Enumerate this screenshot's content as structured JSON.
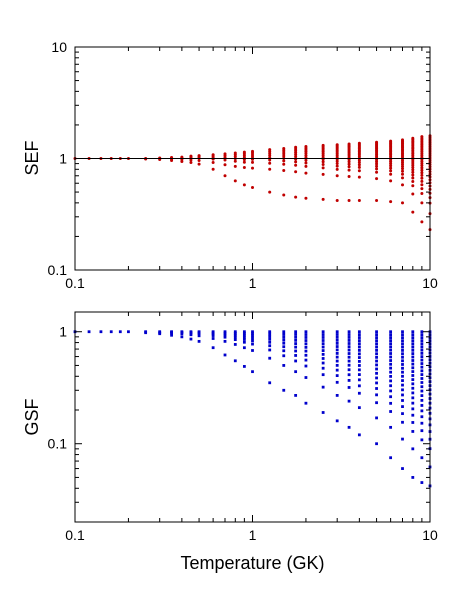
{
  "chart_data": [
    {
      "type": "scatter",
      "xscale": "log",
      "yscale": "log",
      "xlim": [
        0.1,
        10
      ],
      "ylim": [
        0.1,
        10
      ],
      "xticks": [
        "0.1",
        "1",
        "10"
      ],
      "yticks": [
        "0.1",
        "1",
        "10"
      ],
      "ylabel": "SEF",
      "xlabel": "",
      "reference_line_y": 1,
      "color": "#c00000",
      "series": [
        {
          "temperatures": [
            0.1,
            0.12,
            0.14,
            0.16,
            0.18,
            0.2,
            0.25,
            0.3,
            0.35,
            0.4,
            0.45,
            0.5,
            0.6,
            0.7,
            0.8,
            0.9,
            1.0,
            1.25,
            1.5,
            1.75,
            2.0,
            2.5,
            3.0,
            3.5,
            4.0,
            5.0,
            6.0,
            7.0,
            8.0,
            9.0,
            10.0
          ],
          "max": [
            1.0,
            1.0,
            1.0,
            1.0,
            1.0,
            1.0,
            1.0,
            1.01,
            1.02,
            1.03,
            1.05,
            1.06,
            1.08,
            1.1,
            1.12,
            1.14,
            1.16,
            1.2,
            1.23,
            1.26,
            1.28,
            1.31,
            1.33,
            1.35,
            1.37,
            1.4,
            1.43,
            1.47,
            1.52,
            1.57,
            1.6
          ],
          "min": [
            1.0,
            1.0,
            1.0,
            1.0,
            1.0,
            1.0,
            0.99,
            0.98,
            0.96,
            0.94,
            0.92,
            0.89,
            0.8,
            0.7,
            0.63,
            0.58,
            0.55,
            0.5,
            0.47,
            0.45,
            0.44,
            0.43,
            0.42,
            0.42,
            0.42,
            0.42,
            0.41,
            0.4,
            0.33,
            0.27,
            0.23
          ],
          "min_secondary": [
            1.0,
            1.0,
            1.0,
            1.0,
            1.0,
            1.0,
            1.0,
            1.0,
            0.99,
            0.98,
            0.97,
            0.96,
            0.92,
            0.88,
            0.85,
            0.83,
            0.82,
            0.8,
            0.78,
            0.76,
            0.74,
            0.72,
            0.7,
            0.69,
            0.68,
            0.66,
            0.63,
            0.58,
            0.48,
            0.4,
            0.32
          ],
          "points_per_temperature": [
            1,
            1,
            1,
            1,
            1,
            1,
            2,
            3,
            4,
            4,
            5,
            5,
            6,
            6,
            7,
            8,
            8,
            9,
            10,
            11,
            12,
            14,
            16,
            17,
            18,
            20,
            22,
            24,
            26,
            28,
            30
          ]
        }
      ]
    },
    {
      "type": "scatter",
      "xscale": "log",
      "yscale": "log",
      "xlim": [
        0.1,
        10
      ],
      "ylim": [
        0.02,
        1.5
      ],
      "xticks": [
        "0.1",
        "1",
        "10"
      ],
      "yticks": [
        "0.1",
        "1"
      ],
      "ylabel": "GSF",
      "xlabel": "Temperature (GK)",
      "color": "#0000cc",
      "series": [
        {
          "temperatures": [
            0.1,
            0.12,
            0.14,
            0.16,
            0.18,
            0.2,
            0.25,
            0.3,
            0.35,
            0.4,
            0.45,
            0.5,
            0.6,
            0.7,
            0.8,
            0.9,
            1.0,
            1.25,
            1.5,
            1.75,
            2.0,
            2.5,
            3.0,
            3.5,
            4.0,
            5.0,
            6.0,
            7.0,
            8.0,
            9.0,
            10.0
          ],
          "max": [
            1.0,
            1.0,
            1.0,
            1.0,
            1.0,
            1.0,
            1.0,
            1.0,
            1.0,
            1.0,
            1.0,
            1.0,
            1.0,
            1.0,
            1.0,
            1.0,
            1.0,
            1.0,
            1.0,
            1.0,
            1.0,
            1.0,
            1.0,
            1.0,
            1.0,
            1.0,
            1.0,
            1.0,
            1.0,
            1.0,
            1.0
          ],
          "min": [
            1.0,
            1.0,
            1.0,
            1.0,
            0.99,
            0.99,
            0.98,
            0.96,
            0.93,
            0.9,
            0.86,
            0.82,
            0.72,
            0.62,
            0.55,
            0.49,
            0.44,
            0.35,
            0.3,
            0.27,
            0.23,
            0.19,
            0.16,
            0.14,
            0.12,
            0.1,
            0.075,
            0.06,
            0.05,
            0.045,
            0.042
          ],
          "min_secondary": [
            1.0,
            1.0,
            1.0,
            1.0,
            1.0,
            1.0,
            0.99,
            0.98,
            0.97,
            0.96,
            0.94,
            0.92,
            0.87,
            0.82,
            0.77,
            0.72,
            0.68,
            0.58,
            0.5,
            0.44,
            0.39,
            0.32,
            0.27,
            0.24,
            0.21,
            0.17,
            0.14,
            0.11,
            0.09,
            0.075,
            0.062
          ],
          "points_per_temperature": [
            1,
            1,
            1,
            1,
            1,
            1,
            2,
            3,
            4,
            4,
            5,
            5,
            6,
            6,
            7,
            8,
            8,
            9,
            10,
            11,
            12,
            14,
            16,
            17,
            18,
            20,
            22,
            24,
            26,
            28,
            30
          ]
        }
      ]
    }
  ]
}
